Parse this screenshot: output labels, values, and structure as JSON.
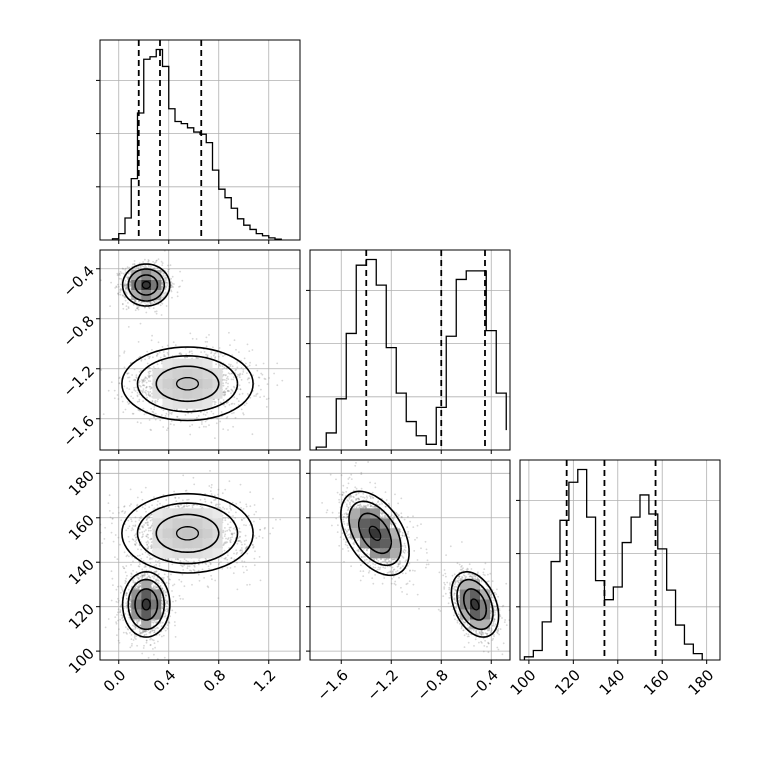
{
  "chart_data": {
    "type": "corner",
    "title": "",
    "grid": true,
    "colors": {
      "line": "#000000",
      "grid": "#b0b0b0",
      "scatter": "#8c8c8c"
    },
    "parameters": [
      {
        "name": "",
        "range": [
          -0.15,
          1.45
        ],
        "ticks": [
          0.0,
          0.4,
          0.8,
          1.2
        ],
        "tick_labels": [
          "0.0",
          "0.4",
          "0.8",
          "1.2"
        ],
        "quantiles": [
          0.16,
          0.33,
          0.66
        ]
      },
      {
        "name": "",
        "range": [
          -1.85,
          -0.25
        ],
        "ticks": [
          -1.6,
          -1.2,
          -0.8,
          -0.4
        ],
        "tick_labels": [
          "−1.6",
          "−1.2",
          "−0.8",
          "−0.4"
        ],
        "quantiles": [
          -1.4,
          -0.8,
          -0.45
        ]
      },
      {
        "name": "",
        "range": [
          96,
          186
        ],
        "ticks": [
          100,
          120,
          140,
          160,
          180
        ],
        "tick_labels": [
          "100",
          "120",
          "140",
          "160",
          "180"
        ],
        "quantiles": [
          117,
          134,
          157
        ]
      }
    ],
    "histograms": [
      {
        "param": 0,
        "edges": [
          -0.05,
          0.0,
          0.05,
          0.1,
          0.15,
          0.2,
          0.25,
          0.3,
          0.35,
          0.4,
          0.45,
          0.5,
          0.55,
          0.6,
          0.65,
          0.7,
          0.75,
          0.8,
          0.85,
          0.9,
          0.95,
          1.0,
          1.05,
          1.1,
          1.15,
          1.2,
          1.25,
          1.3
        ],
        "counts": [
          0.3,
          1.5,
          5.2,
          14.5,
          30,
          42.7,
          43.3,
          45,
          41,
          31,
          28,
          27.5,
          26.5,
          25.5,
          25,
          23,
          16.5,
          12,
          10,
          7.5,
          5,
          3.5,
          2.5,
          1.5,
          1,
          0.5,
          0.2
        ]
      },
      {
        "param": 1,
        "edges": [
          -1.8,
          -1.72,
          -1.64,
          -1.56,
          -1.48,
          -1.4,
          -1.32,
          -1.24,
          -1.16,
          -1.08,
          -1.0,
          -0.92,
          -0.84,
          -0.76,
          -0.68,
          -0.6,
          -0.52,
          -0.44,
          -0.36,
          -0.28
        ],
        "counts": [
          1,
          6,
          18,
          41,
          65,
          67,
          58,
          36,
          20,
          10,
          5,
          2,
          15,
          40,
          60,
          63,
          63,
          42,
          20,
          7
        ]
      },
      {
        "param": 2,
        "edges": [
          98,
          102,
          106,
          110,
          114,
          118,
          122,
          126,
          130,
          134,
          138,
          142,
          146,
          150,
          154,
          158,
          162,
          166,
          170,
          174,
          178
        ],
        "counts": [
          1,
          3,
          12,
          31,
          44,
          56,
          60,
          45,
          25,
          19,
          23,
          37,
          45,
          52,
          46,
          35,
          22,
          11,
          5,
          2
        ]
      }
    ],
    "scatter_panels": [
      {
        "x_param": 0,
        "y_param": 1,
        "modes": [
          {
            "center": [
              0.22,
              -0.53
            ],
            "sd": [
              0.09,
              0.08
            ],
            "weight": 0.5
          },
          {
            "center": [
              0.55,
              -1.32
            ],
            "sd": [
              0.25,
              0.14
            ],
            "weight": 0.5
          }
        ]
      },
      {
        "x_param": 0,
        "y_param": 2,
        "modes": [
          {
            "center": [
              0.22,
              121
            ],
            "sd": [
              0.09,
              7
            ],
            "weight": 0.5
          },
          {
            "center": [
              0.55,
              153
            ],
            "sd": [
              0.25,
              8.5
            ],
            "weight": 0.5
          }
        ]
      },
      {
        "x_param": 1,
        "y_param": 2,
        "modes": [
          {
            "center": [
              -1.33,
              153
            ],
            "sd": [
              0.13,
              9
            ],
            "rho": -0.45,
            "weight": 0.5
          },
          {
            "center": [
              -0.53,
              121
            ],
            "sd": [
              0.09,
              7
            ],
            "rho": -0.35,
            "weight": 0.5
          }
        ]
      }
    ],
    "contour_levels": [
      1.0,
      1.6,
      2.1
    ]
  }
}
